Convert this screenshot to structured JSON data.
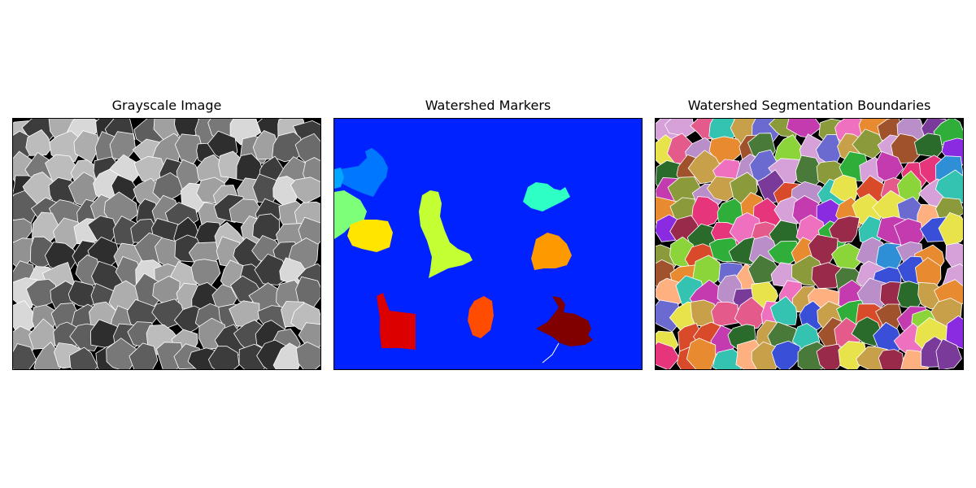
{
  "figure": {
    "panels": [
      {
        "title": "Grayscale Image"
      },
      {
        "title": "Watershed Markers"
      },
      {
        "title": "Watershed Segmentation Boundaries"
      }
    ]
  },
  "colors": {
    "marker_background": "#0022ff",
    "gray_background": "#000000",
    "boundary": "#ffffff"
  },
  "markers": [
    {
      "name": "marker-cyan-blue",
      "color": "#0077ff"
    },
    {
      "name": "marker-light-green",
      "color": "#7dff7a"
    },
    {
      "name": "marker-yellow",
      "color": "#ffe500"
    },
    {
      "name": "marker-lime",
      "color": "#c4ff33"
    },
    {
      "name": "marker-aqua",
      "color": "#2effc4"
    },
    {
      "name": "marker-orange",
      "color": "#ff9900"
    },
    {
      "name": "marker-red",
      "color": "#dd0000"
    },
    {
      "name": "marker-orange-red",
      "color": "#ff4c00"
    },
    {
      "name": "marker-dark-red",
      "color": "#800000"
    }
  ]
}
